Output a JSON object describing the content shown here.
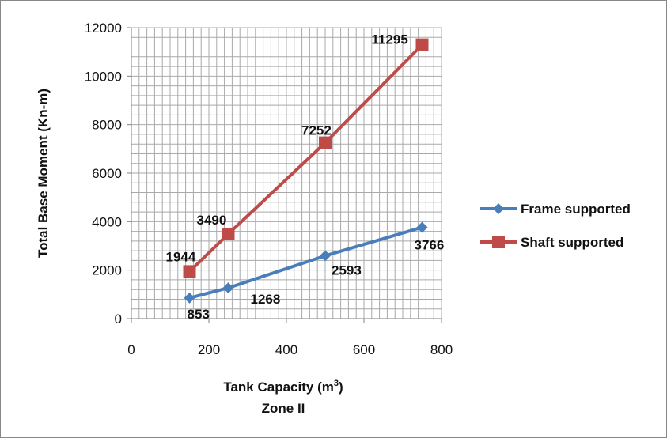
{
  "chart_data": {
    "type": "line",
    "xlabel": "Tank Capacity (m",
    "xlabel_sup": "3",
    "xlabel_close": ")",
    "subtitle": "Zone II",
    "ylabel": "Total Base Moment (Kn-m)",
    "xlim": [
      0,
      800
    ],
    "ylim": [
      0,
      12000
    ],
    "x_ticks": [
      "0",
      "200",
      "400",
      "600",
      "800"
    ],
    "y_ticks": [
      "0",
      "2000",
      "4000",
      "6000",
      "8000",
      "10000",
      "12000"
    ],
    "grid": true,
    "legend_position": "right",
    "x": [
      150,
      250,
      500,
      750
    ],
    "series": [
      {
        "name": "Frame supported",
        "values": [
          853,
          1268,
          2593,
          3766
        ],
        "labels": [
          "853",
          "1268",
          "2593",
          "3766"
        ],
        "color": "#4a7ebb",
        "marker": "diamond"
      },
      {
        "name": "Shaft supported",
        "values": [
          1944,
          3490,
          7252,
          11295
        ],
        "labels": [
          "1944",
          "3490",
          "7252",
          "11295"
        ],
        "color": "#be4b48",
        "marker": "square"
      }
    ]
  }
}
